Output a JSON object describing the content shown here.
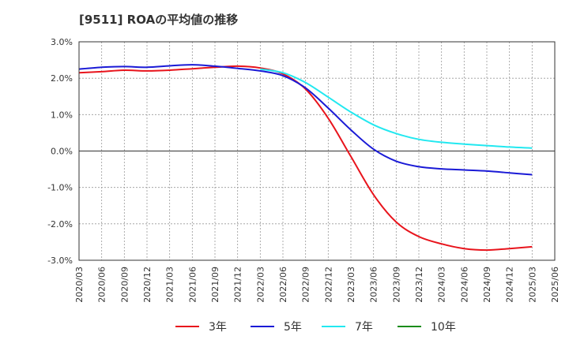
{
  "chart_data": {
    "type": "line",
    "title": "[9511]  ROAの平均値の推移",
    "xlabel": "",
    "ylabel": "",
    "ylim": [
      -3.0,
      3.0
    ],
    "y_ticks": [
      3.0,
      2.0,
      1.0,
      0.0,
      -1.0,
      -2.0,
      -3.0
    ],
    "y_tick_labels": [
      "3.0%",
      "2.0%",
      "1.0%",
      "0.0%",
      "-1.0%",
      "-2.0%",
      "-3.0%"
    ],
    "x_tick_labels": [
      "2020/03",
      "2020/06",
      "2020/09",
      "2020/12",
      "2021/03",
      "2021/06",
      "2021/09",
      "2021/12",
      "2022/03",
      "2022/06",
      "2022/09",
      "2022/12",
      "2023/03",
      "2023/06",
      "2023/09",
      "2023/12",
      "2024/03",
      "2024/06",
      "2024/09",
      "2024/12",
      "2025/03",
      "2025/06"
    ],
    "grid": true,
    "legend_position": "bottom",
    "series": [
      {
        "name": "3年",
        "color": "#e8141c",
        "x": [
          "2020/03",
          "2020/06",
          "2020/09",
          "2020/12",
          "2021/03",
          "2021/06",
          "2021/09",
          "2021/12",
          "2022/03",
          "2022/06",
          "2022/09",
          "2022/12",
          "2023/03",
          "2023/06",
          "2023/09",
          "2023/12",
          "2024/03",
          "2024/06",
          "2024/09",
          "2024/12",
          "2025/03"
        ],
        "values": [
          2.15,
          2.18,
          2.22,
          2.2,
          2.22,
          2.26,
          2.3,
          2.33,
          2.28,
          2.12,
          1.7,
          0.9,
          -0.15,
          -1.2,
          -1.95,
          -2.35,
          -2.55,
          -2.68,
          -2.72,
          -2.68,
          -2.63
        ]
      },
      {
        "name": "5年",
        "color": "#1a1ad6",
        "x": [
          "2020/03",
          "2020/06",
          "2020/09",
          "2020/12",
          "2021/03",
          "2021/06",
          "2021/09",
          "2021/12",
          "2022/03",
          "2022/06",
          "2022/09",
          "2022/12",
          "2023/03",
          "2023/06",
          "2023/09",
          "2023/12",
          "2024/03",
          "2024/06",
          "2024/09",
          "2024/12",
          "2025/03"
        ],
        "values": [
          2.25,
          2.3,
          2.32,
          2.3,
          2.34,
          2.37,
          2.33,
          2.27,
          2.2,
          2.07,
          1.73,
          1.18,
          0.58,
          0.05,
          -0.28,
          -0.43,
          -0.49,
          -0.52,
          -0.55,
          -0.6,
          -0.65
        ]
      },
      {
        "name": "7年",
        "color": "#22e8f0",
        "x": [
          "2022/03",
          "2022/06",
          "2022/09",
          "2022/12",
          "2023/03",
          "2023/06",
          "2023/09",
          "2023/12",
          "2024/03",
          "2024/06",
          "2024/09",
          "2024/12",
          "2025/03"
        ],
        "values": [
          2.25,
          2.15,
          1.88,
          1.48,
          1.07,
          0.72,
          0.48,
          0.32,
          0.24,
          0.19,
          0.15,
          0.11,
          0.08
        ]
      },
      {
        "name": "10年",
        "color": "#1a8c1a",
        "x": [],
        "values": []
      }
    ]
  }
}
